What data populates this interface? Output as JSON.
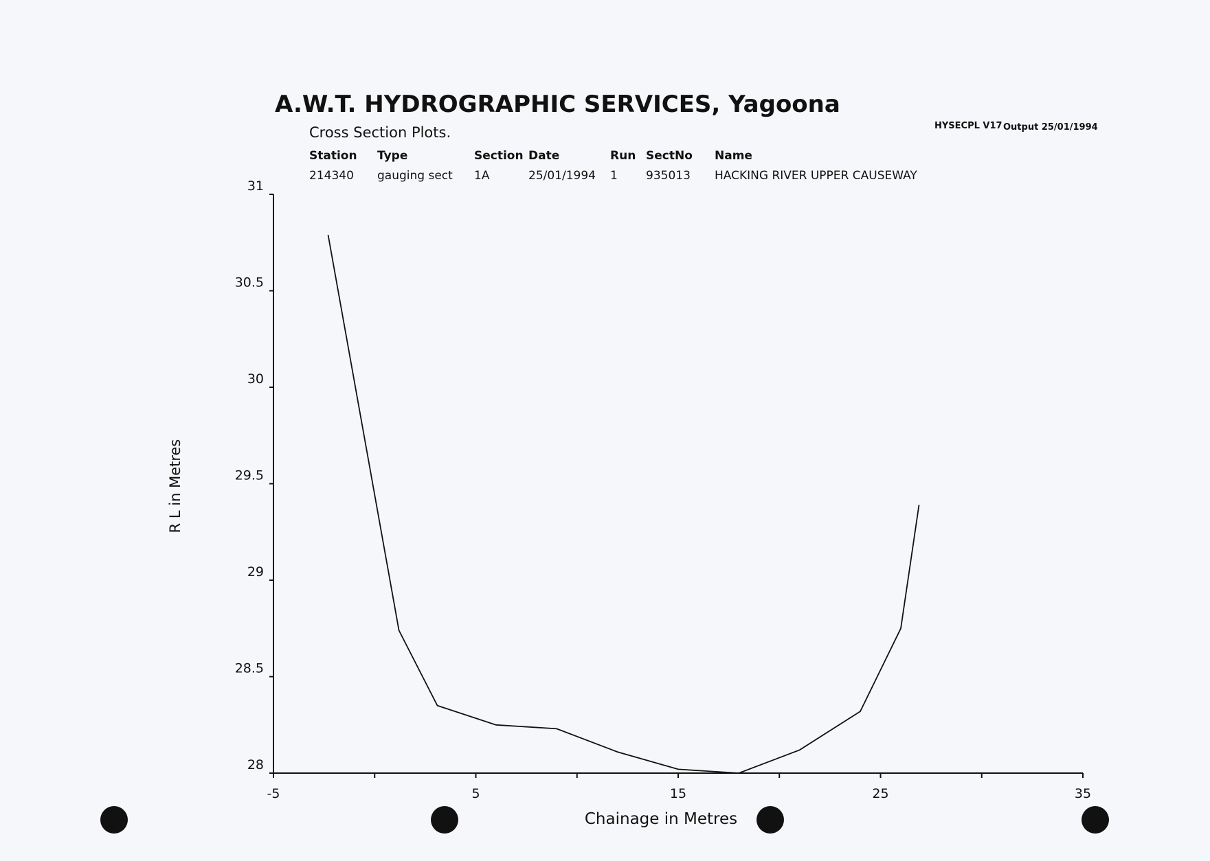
{
  "chart_data": {
    "type": "line",
    "title": "A.W.T. HYDROGRAPHIC SERVICES, Yagoona",
    "subtitle": "Cross Section Plots.",
    "program": "HYSECPL V17",
    "output": "Output 25/01/1994",
    "info": {
      "columns": [
        "Station",
        "Type",
        "Section",
        "Date",
        "Run",
        "SectNo",
        "Name"
      ],
      "values": [
        "214340",
        "gauging sect",
        "1A",
        "25/01/1994",
        "1",
        "935013",
        "HACKING RIVER UPPER CAUSEWAY"
      ]
    },
    "x_label": "Chainage in Metres",
    "y_label": "R L  in Metres",
    "x": [
      -2.3,
      1.2,
      3.1,
      6.0,
      9.0,
      12.0,
      15.0,
      18.0,
      21.0,
      24.0,
      26.0,
      26.9
    ],
    "values": [
      30.79,
      28.74,
      28.35,
      28.25,
      28.23,
      28.11,
      28.02,
      28.0,
      28.12,
      28.32,
      28.75,
      29.39
    ],
    "color": "#111111",
    "xlim": [
      -5,
      35
    ],
    "ylim": [
      28,
      31
    ],
    "xticks": [
      -5,
      5,
      15,
      25,
      35
    ],
    "xminor_ticks": [
      0,
      10,
      20,
      30
    ],
    "yticks": [
      28,
      28.5,
      29,
      29.5,
      30,
      30.5,
      31
    ]
  }
}
